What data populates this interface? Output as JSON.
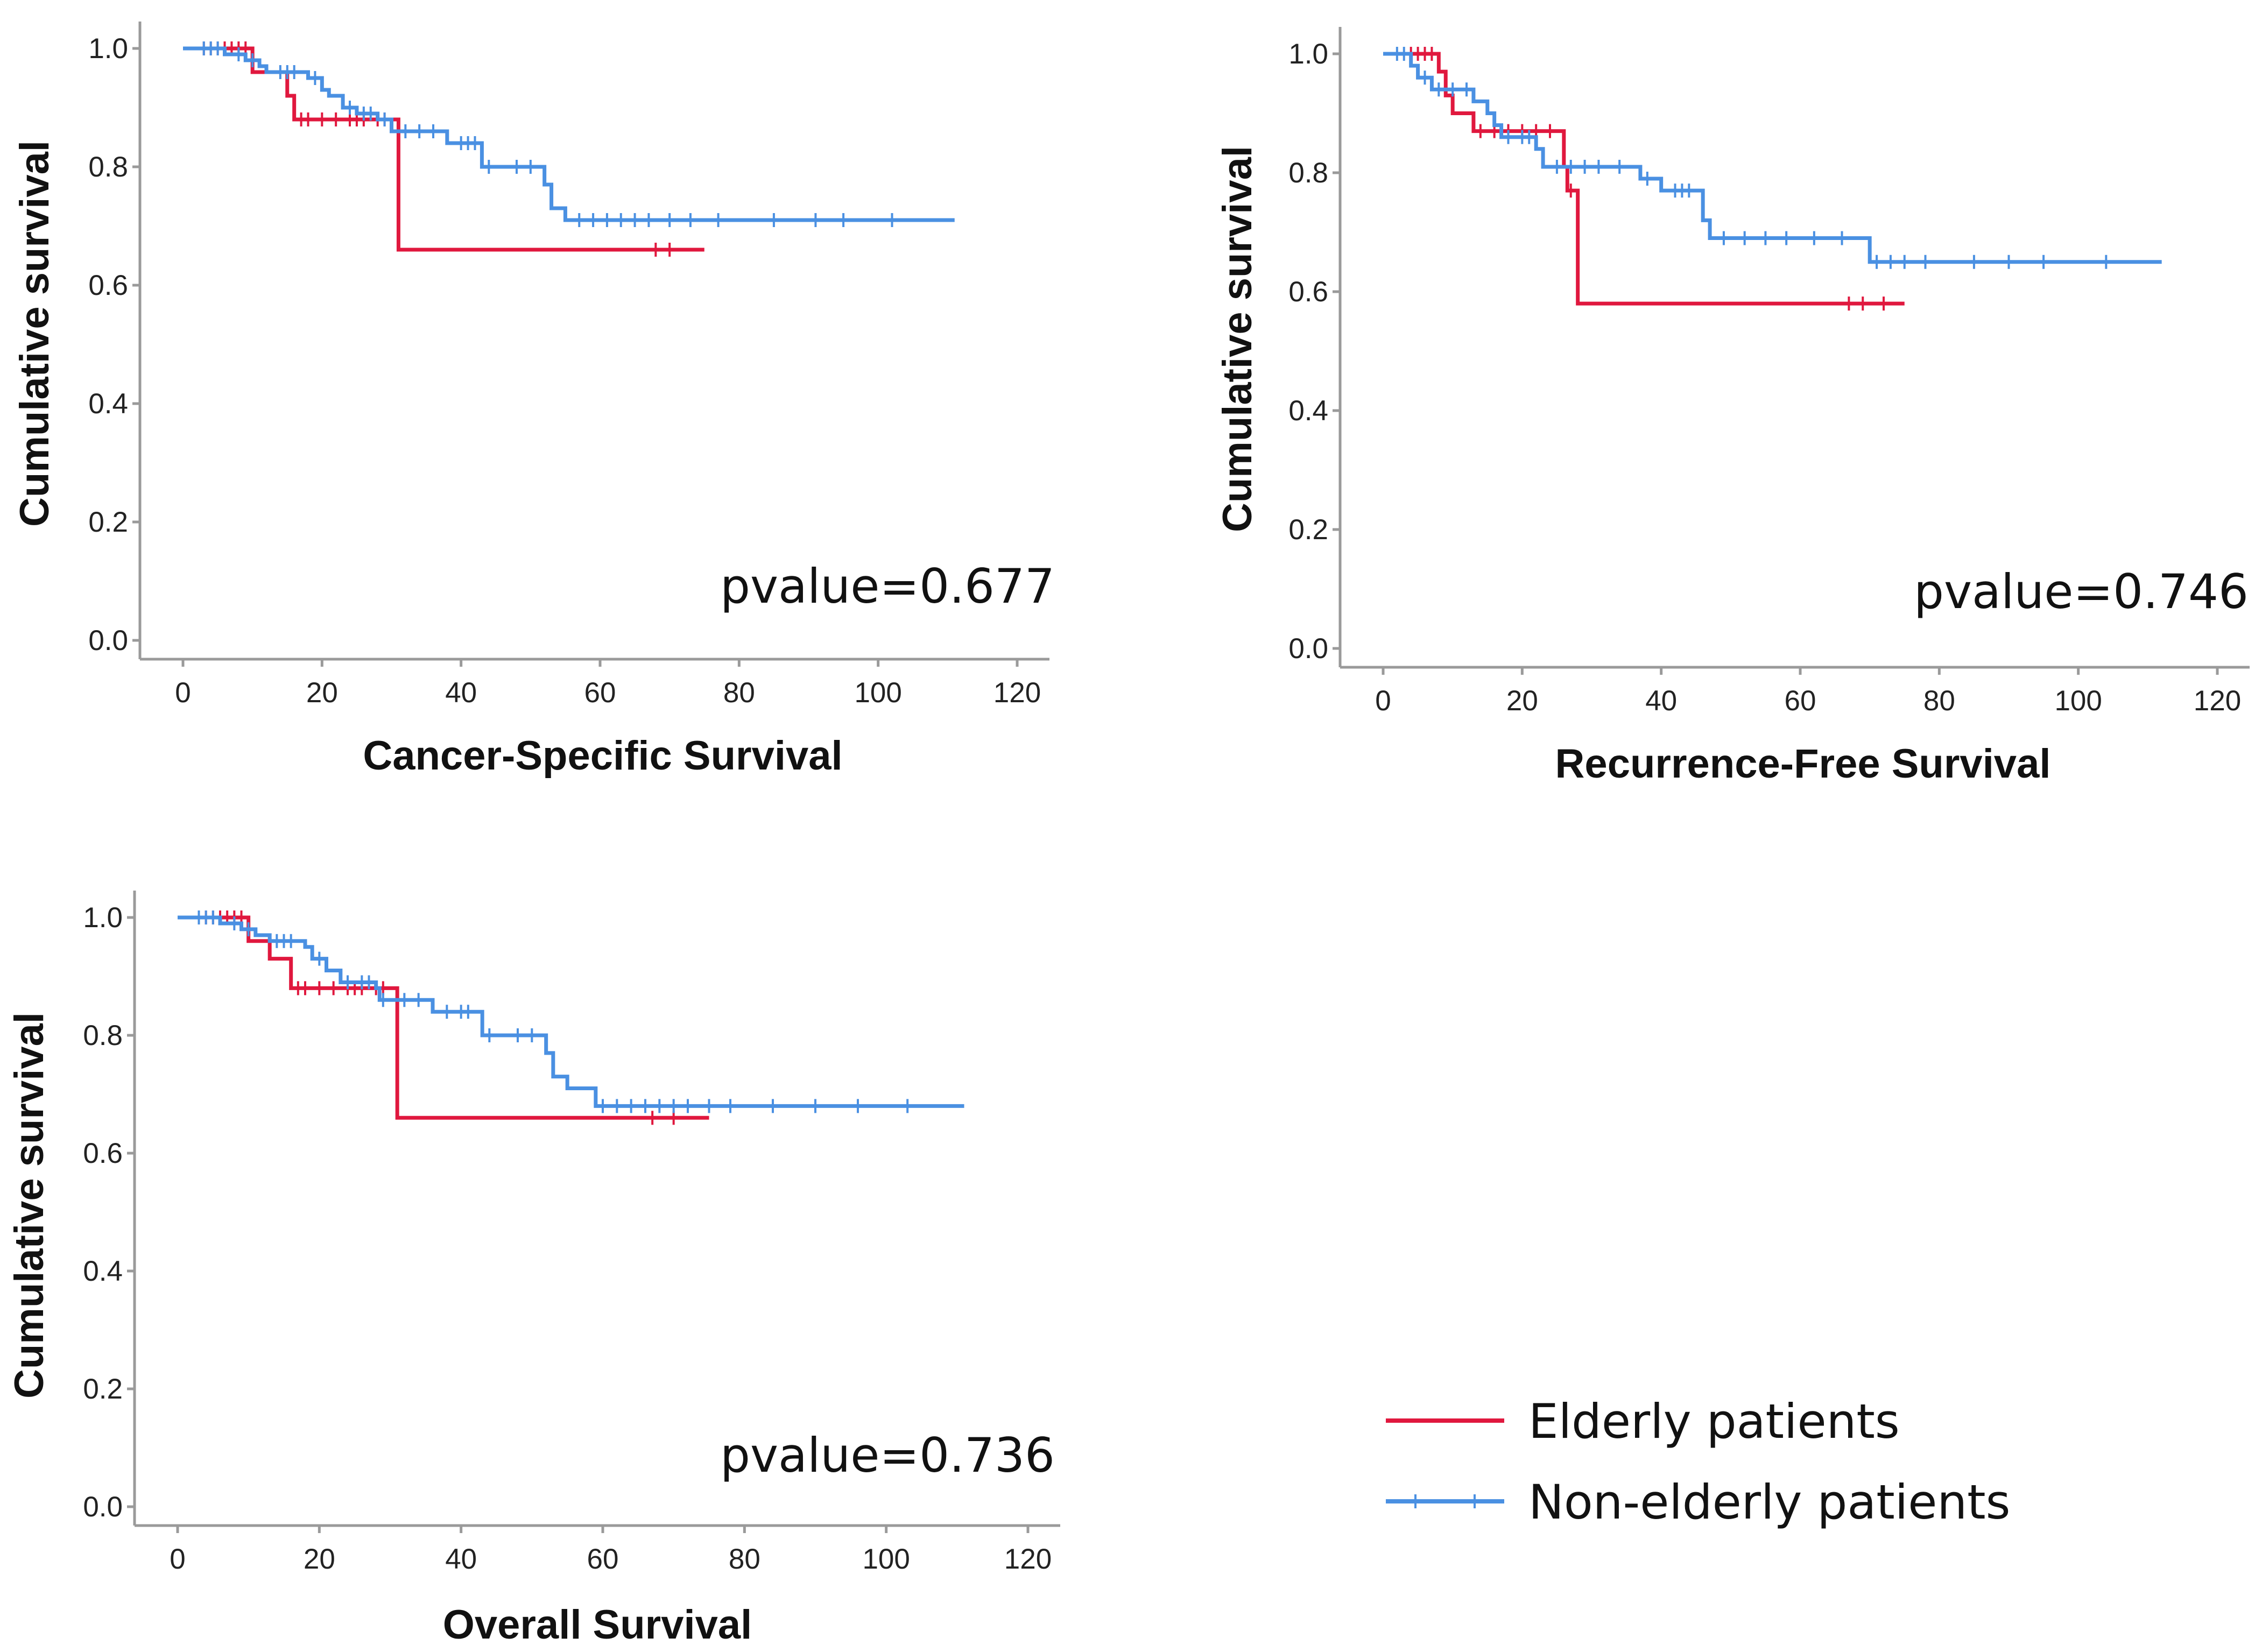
{
  "series_styles": {
    "elderly": {
      "label": "Elderly patients",
      "color": "#e0183e"
    },
    "nonelderly": {
      "label": "Non-elderly patients",
      "color": "#4a90e2"
    }
  },
  "chart_data": [
    {
      "type": "line",
      "subtype": "kaplan-meier",
      "title": "Cancer-Specific Survival",
      "xlabel": "Cancer-Specific Survival",
      "ylabel": "Cumulative survival",
      "annotation": "pvalue=0.677",
      "xlim": [
        0,
        120
      ],
      "ylim": [
        0,
        1.0
      ],
      "xticks": [
        "0",
        "20",
        "40",
        "60",
        "80",
        "100",
        "120"
      ],
      "yticks": [
        "0.0",
        "0.2",
        "0.4",
        "0.6",
        "0.8",
        "1.0"
      ],
      "series": [
        {
          "key": "elderly",
          "name": "Elderly patients",
          "steps": [
            [
              0,
              1.0
            ],
            [
              10,
              0.96
            ],
            [
              15,
              0.92
            ],
            [
              16,
              0.88
            ],
            [
              31,
              0.66
            ],
            [
              75,
              0.66
            ]
          ],
          "censors": [
            3,
            4,
            5,
            6,
            7,
            8,
            9,
            17,
            18,
            20,
            22,
            24,
            25,
            26,
            28,
            29,
            68,
            70
          ]
        },
        {
          "key": "nonelderly",
          "name": "Non-elderly patients",
          "steps": [
            [
              0,
              1.0
            ],
            [
              6,
              0.99
            ],
            [
              9,
              0.98
            ],
            [
              11,
              0.97
            ],
            [
              12,
              0.96
            ],
            [
              18,
              0.95
            ],
            [
              20,
              0.93
            ],
            [
              21,
              0.92
            ],
            [
              23,
              0.9
            ],
            [
              25,
              0.89
            ],
            [
              28,
              0.88
            ],
            [
              30,
              0.86
            ],
            [
              38,
              0.84
            ],
            [
              43,
              0.8
            ],
            [
              52,
              0.77
            ],
            [
              53,
              0.73
            ],
            [
              55,
              0.71
            ],
            [
              111,
              0.71
            ]
          ],
          "censors": [
            3,
            4,
            5,
            8,
            10,
            14,
            15,
            16,
            19,
            24,
            26,
            27,
            29,
            32,
            34,
            36,
            40,
            41,
            42,
            44,
            48,
            50,
            57,
            59,
            61,
            63,
            65,
            67,
            70,
            73,
            77,
            85,
            91,
            95,
            102
          ]
        }
      ]
    },
    {
      "type": "line",
      "subtype": "kaplan-meier",
      "title": "Recurrence-Free Survival",
      "xlabel": "Recurrence-Free Survival",
      "ylabel": "Cumulative survival",
      "annotation": "pvalue=0.746",
      "xlim": [
        0,
        120
      ],
      "ylim": [
        0,
        1.0
      ],
      "xticks": [
        "0",
        "20",
        "40",
        "60",
        "80",
        "100",
        "120"
      ],
      "yticks": [
        "0.0",
        "0.2",
        "0.4",
        "0.6",
        "0.8",
        "1.0"
      ],
      "series": [
        {
          "key": "elderly",
          "name": "Elderly patients",
          "steps": [
            [
              0,
              1.0
            ],
            [
              8,
              0.97
            ],
            [
              9,
              0.93
            ],
            [
              10,
              0.9
            ],
            [
              13,
              0.87
            ],
            [
              26,
              0.81
            ],
            [
              26.5,
              0.77
            ],
            [
              28,
              0.58
            ],
            [
              75,
              0.58
            ]
          ],
          "censors": [
            4,
            5,
            6,
            7,
            14,
            16,
            18,
            20,
            22,
            24,
            27,
            67,
            69,
            72
          ]
        },
        {
          "key": "nonelderly",
          "name": "Non-elderly patients",
          "steps": [
            [
              0,
              1.0
            ],
            [
              4,
              0.98
            ],
            [
              5,
              0.96
            ],
            [
              7,
              0.94
            ],
            [
              13,
              0.92
            ],
            [
              15,
              0.9
            ],
            [
              16,
              0.88
            ],
            [
              17,
              0.86
            ],
            [
              22,
              0.84
            ],
            [
              23,
              0.81
            ],
            [
              37,
              0.79
            ],
            [
              40,
              0.77
            ],
            [
              46,
              0.72
            ],
            [
              47,
              0.69
            ],
            [
              70,
              0.65
            ],
            [
              112,
              0.65
            ]
          ],
          "censors": [
            2,
            3,
            6,
            8,
            10,
            12,
            18,
            20,
            21,
            25,
            27,
            29,
            31,
            34,
            38,
            42,
            43,
            44,
            49,
            52,
            55,
            58,
            62,
            66,
            71,
            73,
            75,
            78,
            85,
            90,
            95,
            104
          ]
        }
      ]
    },
    {
      "type": "line",
      "subtype": "kaplan-meier",
      "title": "Overall Survival",
      "xlabel": "Overall Survival",
      "ylabel": "Cumulative survival",
      "annotation": "pvalue=0.736",
      "xlim": [
        0,
        120
      ],
      "ylim": [
        0,
        1.0
      ],
      "xticks": [
        "0",
        "20",
        "40",
        "60",
        "80",
        "100",
        "120"
      ],
      "yticks": [
        "0.0",
        "0.2",
        "0.4",
        "0.6",
        "0.8",
        "1.0"
      ],
      "series": [
        {
          "key": "elderly",
          "name": "Elderly patients",
          "steps": [
            [
              0,
              1.0
            ],
            [
              10,
              0.96
            ],
            [
              13,
              0.93
            ],
            [
              16,
              0.88
            ],
            [
              31,
              0.66
            ],
            [
              75,
              0.66
            ]
          ],
          "censors": [
            3,
            4,
            5,
            6,
            7,
            8,
            9,
            17,
            18,
            20,
            22,
            24,
            25,
            26,
            28,
            29,
            67,
            70
          ]
        },
        {
          "key": "nonelderly",
          "name": "Non-elderly patients",
          "steps": [
            [
              0,
              1.0
            ],
            [
              6,
              0.99
            ],
            [
              9,
              0.98
            ],
            [
              11,
              0.97
            ],
            [
              13,
              0.96
            ],
            [
              18,
              0.95
            ],
            [
              19,
              0.93
            ],
            [
              21,
              0.91
            ],
            [
              23,
              0.89
            ],
            [
              28,
              0.88
            ],
            [
              28.5,
              0.86
            ],
            [
              36,
              0.84
            ],
            [
              43,
              0.8
            ],
            [
              52,
              0.77
            ],
            [
              53,
              0.73
            ],
            [
              55,
              0.71
            ],
            [
              59,
              0.68
            ],
            [
              111,
              0.68
            ]
          ],
          "censors": [
            3,
            4,
            5,
            8,
            10,
            14,
            15,
            16,
            20,
            24,
            26,
            27,
            29,
            32,
            34,
            38,
            40,
            41,
            44,
            48,
            50,
            60,
            62,
            64,
            66,
            68,
            70,
            72,
            75,
            78,
            84,
            90,
            96,
            103
          ]
        }
      ]
    }
  ]
}
